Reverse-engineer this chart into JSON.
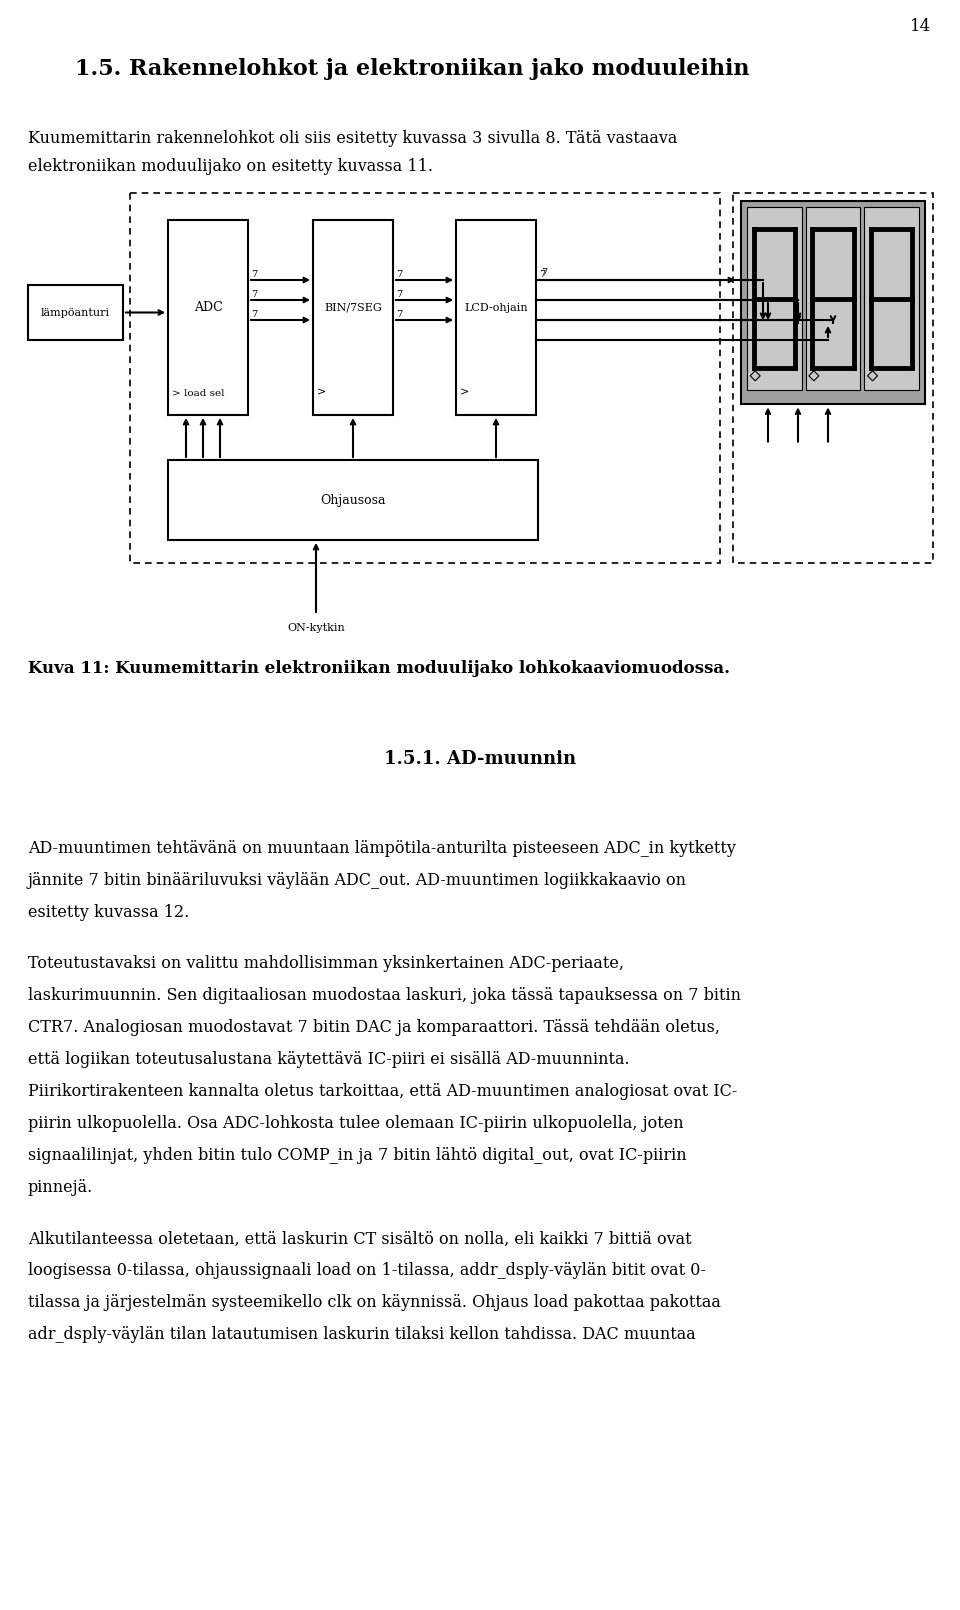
{
  "page_number": "14",
  "title": "1.5. Rakennelohkot ja elektroniikan jako moduuleihin",
  "intro_line1": "Kuumemittarin rakennelohkot oli siis esitetty kuvassa 3 sivulla 8. Tätä vastaava",
  "intro_line2": "elektroniikan moduulijako on esitetty kuvassa 11.",
  "figure_caption": "Kuva 11: Kuumemittarin elektroniikan moduulijako lohkokaaviomuodossa.",
  "section_title": "1.5.1. AD-muunnin",
  "body_lines": [
    {
      "text": "AD-muuntimen tehtävänä on muuntaan lämpötila-anturilta pisteeseen ",
      "italic": "ADC_in",
      "after": " kytketty"
    },
    {
      "text": "jännite 7 bitin binääriluvuksi väylään ",
      "italic": "ADC_out.",
      "after": " AD-muuntimen logiikkakaavio on"
    },
    {
      "text": "esitetty kuvassa 12.",
      "italic": "",
      "after": ""
    },
    {
      "text": "",
      "italic": "",
      "after": ""
    },
    {
      "text": "Toteutustavaksi on valittu mahdollisimman yksinkertainen ADC-periaate,",
      "italic": "",
      "after": ""
    },
    {
      "text": "laskurimuunnin. Sen digitaaliosan muodostaa laskuri, joka tässä tapauksessa on 7 bitin",
      "italic": "",
      "after": ""
    },
    {
      "text": "CTR7. Analogiosan muodostavat 7 bitin DAC ja komparaattori. Tässä tehdään oletus,",
      "italic": "",
      "after": ""
    },
    {
      "text": "että logiikan toteutusalustana käytettävä IC-piiri ei sisällä AD-muunninta.",
      "italic": "",
      "after": ""
    },
    {
      "text": "Piirikortirakenteen kannalta oletus tarkoittaa, että AD-muuntimen analogiosat ovat IC-",
      "italic": "",
      "after": ""
    },
    {
      "text": "piirin ulkopuolella. Osa ADC-lohkosta tulee olemaan IC-piirin ulkopuolella, joten",
      "italic": "",
      "after": ""
    },
    {
      "text": "signaalilinjat, yhden bitin tulo ",
      "italic": "COMP_in",
      "after": " ja 7 bitin lähtö ",
      "italic2": "digital_out,",
      "after2": " ovat IC-piirin"
    },
    {
      "text": "pinnejä.",
      "italic": "",
      "after": ""
    },
    {
      "text": "",
      "italic": "",
      "after": ""
    },
    {
      "text": "Alkutilanteessa oletetaan, että laskurin ",
      "italic": "CT",
      "after": " sisältö on nolla, eli kaikki 7 bittiä ovat"
    },
    {
      "text": "loogisessa 0-tilassa, ohjaussignaali ",
      "italic": "load",
      "after": " on 1-tilassa, ",
      "italic2": "addr_dsply",
      "after2": "-väylän bitit ovat 0-"
    },
    {
      "text": "tilassa ja järjestelmän systeemikello ",
      "italic": "clk",
      "after": " on käynnissä. Ohjaus ",
      "italic2": "load",
      "after2": " pakottaa pakottaa"
    },
    {
      "text": "adr_dsply-väylän tilan latautumisen laskurin tilaksi kellon tahdissa. DAC muuntaa",
      "italic": "",
      "after": ""
    }
  ]
}
